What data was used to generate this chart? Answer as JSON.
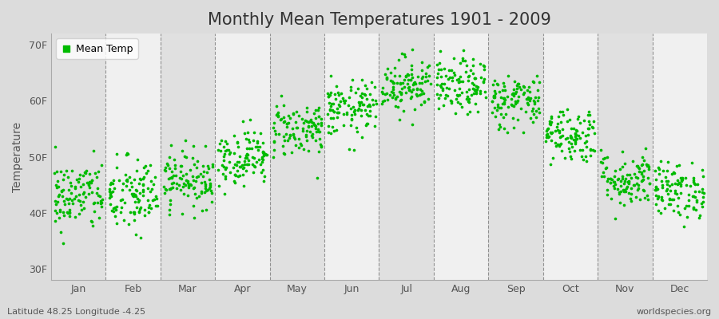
{
  "title": "Monthly Mean Temperatures 1901 - 2009",
  "ylabel": "Temperature",
  "xlabel_months": [
    "Jan",
    "Feb",
    "Mar",
    "Apr",
    "May",
    "Jun",
    "Jul",
    "Aug",
    "Sep",
    "Oct",
    "Nov",
    "Dec"
  ],
  "yticks": [
    30,
    40,
    50,
    60,
    70
  ],
  "ytick_labels": [
    "30F",
    "40F",
    "50F",
    "60F",
    "70F"
  ],
  "ylim": [
    28,
    72
  ],
  "dot_color": "#00BB00",
  "bg_color": "#DCDCDC",
  "plot_bg_light": "#F0F0F0",
  "plot_bg_dark": "#E0E0E0",
  "legend_label": "Mean Temp",
  "subtitle_left": "Latitude 48.25 Longitude -4.25",
  "subtitle_right": "worldspecies.org",
  "title_fontsize": 15,
  "label_fontsize": 10,
  "tick_fontsize": 9,
  "n_years": 109,
  "monthly_means_F": [
    43.0,
    43.0,
    46.0,
    50.0,
    55.0,
    58.5,
    63.0,
    62.5,
    60.0,
    54.0,
    46.0,
    44.0
  ],
  "monthly_stds_F": [
    3.2,
    3.5,
    2.5,
    2.5,
    2.5,
    2.5,
    2.5,
    2.5,
    2.5,
    2.5,
    2.5,
    2.5
  ],
  "random_seed": 42
}
